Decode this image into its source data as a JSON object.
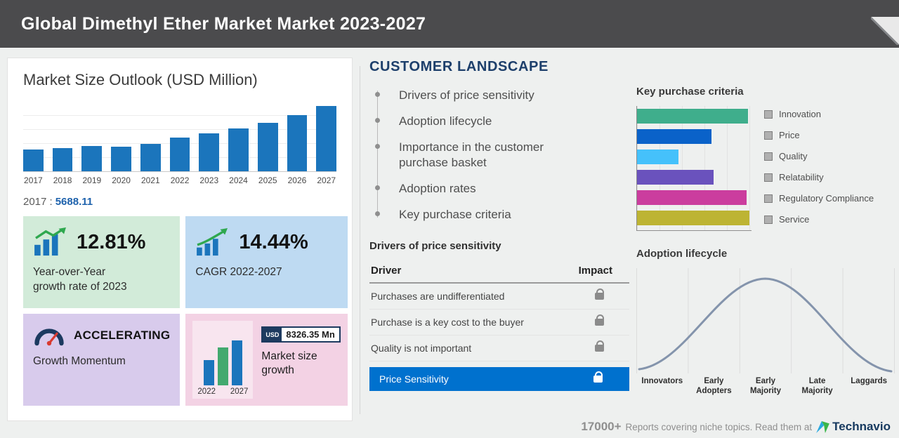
{
  "header": {
    "title": "Global Dimethyl Ether Market Market 2023-2027"
  },
  "market_size": {
    "base_year_label": "2017 :",
    "base_year_value": "5688.11",
    "yoy": {
      "value": "12.81%",
      "line1": "Year-over-Year",
      "line2": "growth rate of 2023"
    },
    "cagr": {
      "value": "14.44%",
      "label": "CAGR 2022-2027"
    },
    "momentum": {
      "value": "ACCELERATING",
      "label": "Growth Momentum"
    },
    "growth": {
      "currency": "USD",
      "value": "8326.35 Mn",
      "label": "Market size growth",
      "year_start": "2022",
      "year_end": "2027"
    }
  },
  "customer_landscape": {
    "title": "CUSTOMER LANDSCAPE",
    "items": [
      "Drivers of price sensitivity",
      "Adoption lifecycle",
      "Importance in the customer purchase basket",
      "Adoption rates",
      "Key purchase criteria"
    ]
  },
  "price_sensitivity": {
    "title": "Drivers of price sensitivity",
    "col_driver": "Driver",
    "col_impact": "Impact",
    "rows": [
      "Purchases are undifferentiated",
      "Purchase is a key cost to the buyer",
      "Quality is not important"
    ],
    "highlight": "Price Sensitivity"
  },
  "footer": {
    "count": "17000+",
    "text": "Reports covering niche topics. Read them at",
    "brand": "Technavio"
  },
  "colors": {
    "header_bg": "#4b4b4d",
    "bar_blue": "#1b75bc",
    "highlight_blue": "#0071ce",
    "box_green": "#d2ebd9",
    "box_blue": "#bedaf2",
    "box_purple": "#d8cbec",
    "box_pink": "#f3d2e4",
    "navy": "#1d3f6b"
  },
  "chart_data": [
    {
      "type": "bar",
      "title": "Market Size Outlook (USD Million)",
      "categories": [
        "2017",
        "2018",
        "2019",
        "2020",
        "2021",
        "2022",
        "2023",
        "2024",
        "2025",
        "2026",
        "2027"
      ],
      "values": [
        5688.11,
        6050,
        6480,
        6450,
        7050,
        8650,
        9760,
        11100,
        12600,
        14600,
        16980
      ],
      "ylim": [
        0,
        18000
      ],
      "bar_color": "#1b75bc",
      "grid": true,
      "legend": false
    },
    {
      "type": "bar",
      "orientation": "horizontal",
      "title": "Key purchase criteria",
      "categories": [
        "Innovation",
        "Price",
        "Quality",
        "Relatability",
        "Regulatory Compliance",
        "Service"
      ],
      "values": [
        97,
        65,
        36,
        67,
        96,
        98
      ],
      "xlim": [
        0,
        100
      ],
      "colors": [
        "#3fae8c",
        "#0a62c9",
        "#45c1fb",
        "#6a52bd",
        "#cb3d9e",
        "#bdb433"
      ],
      "legend_position": "right"
    },
    {
      "type": "line",
      "title": "Adoption lifecycle",
      "shape": "bell-curve",
      "stages": [
        "Innovators",
        "Early Adopters",
        "Early Majority",
        "Late Majority",
        "Laggards"
      ],
      "line_color": "#8494ac",
      "grid": true
    }
  ]
}
